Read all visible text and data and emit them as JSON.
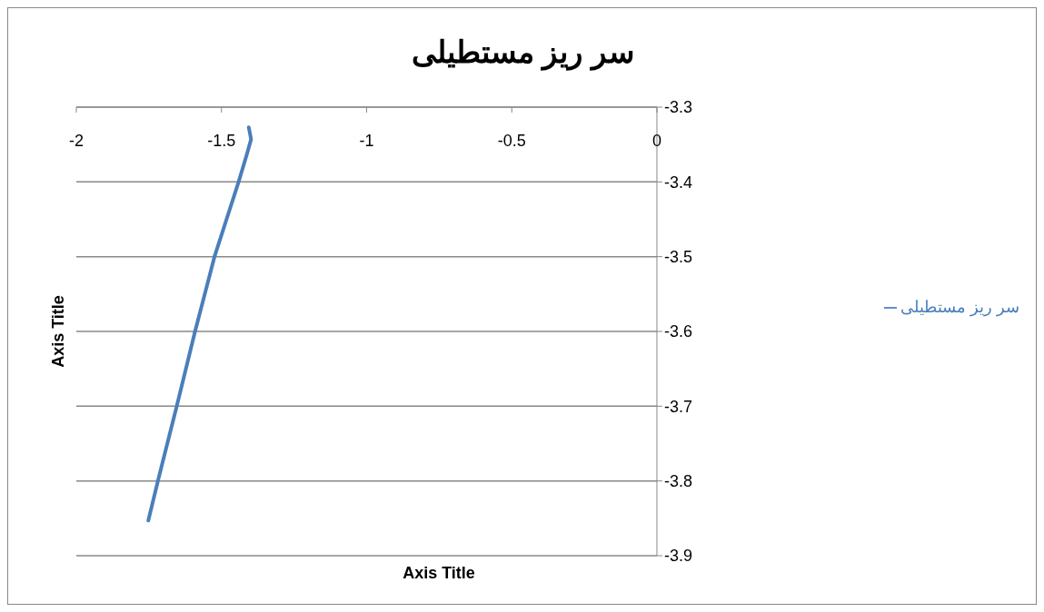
{
  "chart_data": {
    "type": "line",
    "title": "سر ریز مستطیلی",
    "xlabel": "Axis Title",
    "ylabel": "Axis Title",
    "xlim": [
      -2,
      0
    ],
    "xticks": [
      -2,
      -1.5,
      -1,
      -0.5,
      0
    ],
    "ylim": [
      -3.9,
      -3.3
    ],
    "yticks": [
      -3.9,
      -3.8,
      -3.7,
      -3.6,
      -3.5,
      -3.4,
      -3.3
    ],
    "grid": "y",
    "legend": "right",
    "marker": "none",
    "series": [
      {
        "name": "سر ریز مستطیلی",
        "color": "#4a7ebb",
        "x": [
          -1.752,
          -1.719,
          -1.654,
          -1.591,
          -1.524,
          -1.441,
          -1.411,
          -1.398,
          -1.406
        ],
        "values": [
          -3.853,
          -3.8,
          -3.7,
          -3.6,
          -3.5,
          -3.4,
          -3.361,
          -3.343,
          -3.327
        ]
      }
    ]
  }
}
